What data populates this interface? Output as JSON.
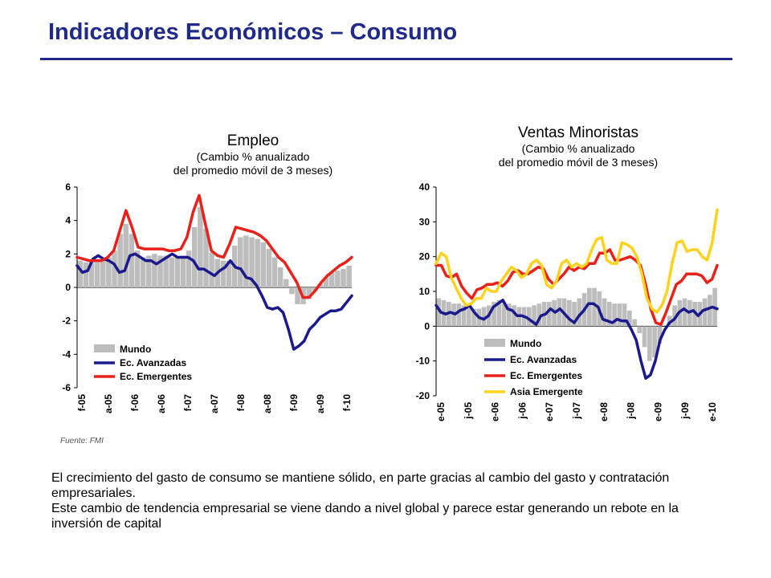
{
  "slide": {
    "title": "Indicadores Económicos – Consumo",
    "source": "Fuente: FMI",
    "paragraphs": [
      "El crecimiento del gasto de consumo se mantiene sólido, en parte gracias al cambio del gasto y contratación  empresariales.",
      "Este cambio de tendencia empresarial se viene dando a nivel global y parece estar generando un rebote en la inversión de capital"
    ]
  },
  "colors": {
    "title": "#1f2a8a",
    "mundo": "#bdbdbd",
    "avanzadas": "#1a1a8c",
    "emergentes": "#e8221b",
    "asia": "#ffd21f"
  },
  "chart_data": [
    {
      "type": "line",
      "title": "Empleo",
      "subtitle": [
        "(Cambio % anualizado",
        "del promedio móvil de 3 meses)"
      ],
      "ylim": [
        -6,
        6
      ],
      "yticks": [
        "6",
        "4",
        "2",
        "0",
        "-2",
        "-4",
        "-6"
      ],
      "xticks": [
        "f-05",
        "a-05",
        "f-06",
        "a-06",
        "f-07",
        "a-07",
        "f-08",
        "a-08",
        "f-09",
        "a-09",
        "f-10"
      ],
      "series": [
        {
          "name": "Mundo",
          "style": "bar",
          "color": "#bdbdbd",
          "values": [
            1.6,
            1.5,
            1.5,
            1.5,
            1.6,
            1.8,
            2.2,
            3.2,
            3.8,
            3.2,
            2.2,
            1.8,
            1.9,
            2.0,
            1.9,
            1.9,
            1.8,
            1.8,
            1.9,
            2.2,
            3.6,
            4.8,
            3.5,
            2.1,
            1.7,
            1.6,
            1.6,
            2.5,
            3.0,
            3.1,
            3.0,
            2.9,
            2.7,
            2.3,
            1.8,
            1.2,
            0.5,
            -0.4,
            -1.0,
            -1.0,
            -0.7,
            -0.2,
            0.2,
            0.6,
            0.9,
            1.0,
            1.1,
            1.3
          ]
        },
        {
          "name": "Ec. Avanzadas",
          "color": "#1a1a8c",
          "values": [
            1.3,
            0.9,
            1.0,
            1.7,
            1.9,
            1.7,
            1.6,
            1.4,
            0.9,
            1.0,
            1.9,
            2.0,
            1.8,
            1.6,
            1.6,
            1.4,
            1.6,
            1.8,
            2.0,
            1.8,
            1.8,
            1.8,
            1.6,
            1.1,
            1.1,
            0.9,
            0.7,
            1.0,
            1.2,
            1.6,
            1.2,
            1.1,
            0.6,
            0.5,
            0.1,
            -0.5,
            -1.2,
            -1.3,
            -1.2,
            -1.5,
            -2.5,
            -3.7,
            -3.5,
            -3.2,
            -2.5,
            -2.2,
            -1.8,
            -1.6,
            -1.4,
            -1.4,
            -1.3,
            -0.9,
            -0.5
          ]
        },
        {
          "name": "Ec. Emergentes",
          "color": "#e8221b",
          "values": [
            1.8,
            1.7,
            1.6,
            1.6,
            1.6,
            1.8,
            2.2,
            3.4,
            4.6,
            3.6,
            2.4,
            2.3,
            2.3,
            2.3,
            2.3,
            2.2,
            2.2,
            2.3,
            3.0,
            4.5,
            5.5,
            3.8,
            2.2,
            1.9,
            1.8,
            2.6,
            3.6,
            3.5,
            3.4,
            3.3,
            3.1,
            2.8,
            2.3,
            1.8,
            1.5,
            0.9,
            0.3,
            -0.6,
            -0.6,
            -0.2,
            0.3,
            0.7,
            1.0,
            1.3,
            1.5,
            1.8
          ]
        }
      ],
      "legend": {
        "position": "bottom-left",
        "items": [
          "Mundo",
          "Ec. Avanzadas",
          "Ec. Emergentes"
        ]
      }
    },
    {
      "type": "line",
      "title": "Ventas Minoristas",
      "subtitle": [
        "(Cambio % anualizado",
        "del promedio móvil de 3 meses)"
      ],
      "ylim": [
        -20,
        40
      ],
      "yticks": [
        "40",
        "30",
        "20",
        "10",
        "0",
        "-10",
        "-20"
      ],
      "xticks": [
        "e-05",
        "j-05",
        "e-06",
        "j-06",
        "e-07",
        "j-07",
        "e-08",
        "j-08",
        "e-09",
        "j-09",
        "e-10"
      ],
      "series": [
        {
          "name": "Mundo",
          "style": "bar",
          "color": "#bdbdbd",
          "values": [
            8,
            7.5,
            7,
            6.5,
            6.5,
            6,
            5.5,
            5,
            5,
            5.5,
            6,
            7,
            7.5,
            7,
            6.5,
            6,
            5.5,
            5.5,
            5.5,
            6,
            6.5,
            7,
            7,
            7.5,
            8,
            8,
            7.5,
            7,
            8,
            9.5,
            11,
            11,
            10,
            8,
            7,
            6.5,
            6.5,
            6.5,
            4.5,
            2,
            -2,
            -6,
            -10,
            -9,
            -5,
            0,
            3,
            6,
            7.5,
            8,
            7.5,
            7,
            7,
            8,
            9,
            11
          ]
        },
        {
          "name": "Ec. Avanzadas",
          "color": "#1a1a8c",
          "values": [
            6,
            4,
            3.5,
            4,
            3.5,
            4.5,
            5,
            6,
            4,
            2.5,
            2,
            3,
            5.5,
            6.5,
            7.5,
            5,
            4.5,
            3,
            3,
            2.5,
            1.5,
            0.5,
            3,
            3.5,
            5,
            4,
            5,
            3.5,
            2,
            1,
            3,
            4.5,
            6.5,
            6.5,
            5.5,
            2,
            1.5,
            1,
            2,
            1.5,
            1.5,
            -1,
            -4,
            -10,
            -15,
            -14,
            -10,
            -4,
            -1,
            1,
            2,
            4,
            5,
            4,
            4.5,
            3,
            4.5,
            5,
            5.5,
            5
          ]
        },
        {
          "name": "Ec. Emergentes",
          "color": "#e8221b",
          "values": [
            17.5,
            17.5,
            14.5,
            14,
            15,
            11.5,
            9.5,
            8,
            10.5,
            11,
            12,
            12,
            12.5,
            11.5,
            13,
            15.5,
            16,
            15,
            15,
            16,
            17,
            16.5,
            13.5,
            12,
            13.5,
            15,
            17,
            16,
            17,
            16.5,
            18,
            18,
            21,
            21,
            22,
            19,
            19,
            19.5,
            20,
            19,
            17.5,
            12,
            5,
            1,
            0.5,
            4,
            8,
            12,
            13,
            15,
            15,
            15,
            14.5,
            12.5,
            13.5,
            17.5
          ]
        },
        {
          "name": "Asia Emergente",
          "color": "#ffd21f",
          "values": [
            18,
            21,
            20,
            14,
            11,
            8,
            6,
            6.5,
            8,
            8,
            11,
            10,
            10,
            13,
            15,
            17,
            16,
            14,
            15,
            18,
            19,
            17.5,
            12,
            11,
            13,
            18,
            19,
            17,
            18,
            17,
            18,
            22,
            25,
            25.5,
            19,
            18,
            18,
            24,
            23.5,
            22.5,
            20,
            15,
            8,
            5,
            4,
            6,
            10,
            18,
            24,
            24.5,
            21.5,
            22,
            22,
            20,
            19,
            24,
            33.5
          ]
        }
      ],
      "legend": {
        "position": "bottom-left",
        "items": [
          "Mundo",
          "Ec. Avanzadas",
          "Ec. Emergentes",
          "Asia Emergente"
        ]
      }
    }
  ]
}
